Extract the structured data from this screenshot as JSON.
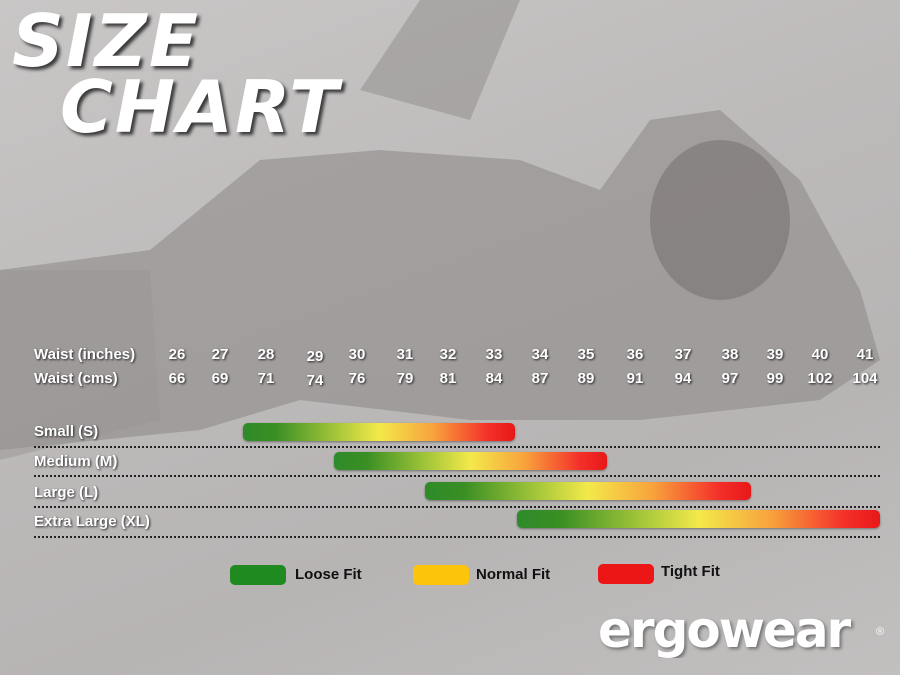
{
  "title": {
    "line1": "SIZE",
    "line2": "CHART"
  },
  "brand": {
    "name": "ergowear",
    "registered": "®"
  },
  "chart_data": {
    "type": "bar",
    "rows": [
      {
        "label": "Waist (inches)",
        "values": [
          "26",
          "27",
          "28",
          "29",
          "30",
          "31",
          "32",
          "33",
          "34",
          "35",
          "36",
          "37",
          "38",
          "39",
          "40",
          "41"
        ]
      },
      {
        "label": "Waist (cms)",
        "values": [
          "66",
          "69",
          "71",
          "74",
          "76",
          "79",
          "81",
          "84",
          "87",
          "89",
          "91",
          "94",
          "97",
          "99",
          "102",
          "104"
        ]
      }
    ],
    "sizes": [
      {
        "label": "Small (S)",
        "range_inches": [
          28,
          33
        ]
      },
      {
        "label": "Medium (M)",
        "range_inches": [
          30,
          35
        ]
      },
      {
        "label": "Large (L)",
        "range_inches": [
          32,
          38
        ]
      },
      {
        "label": "Extra Large (XL)",
        "range_inches": [
          34,
          41
        ]
      }
    ],
    "legend": [
      {
        "label": "Loose Fit",
        "color": "#1f8a1f"
      },
      {
        "label": "Normal Fit",
        "color": "#fcc40a"
      },
      {
        "label": "Tight Fit",
        "color": "#ec1616"
      }
    ]
  }
}
